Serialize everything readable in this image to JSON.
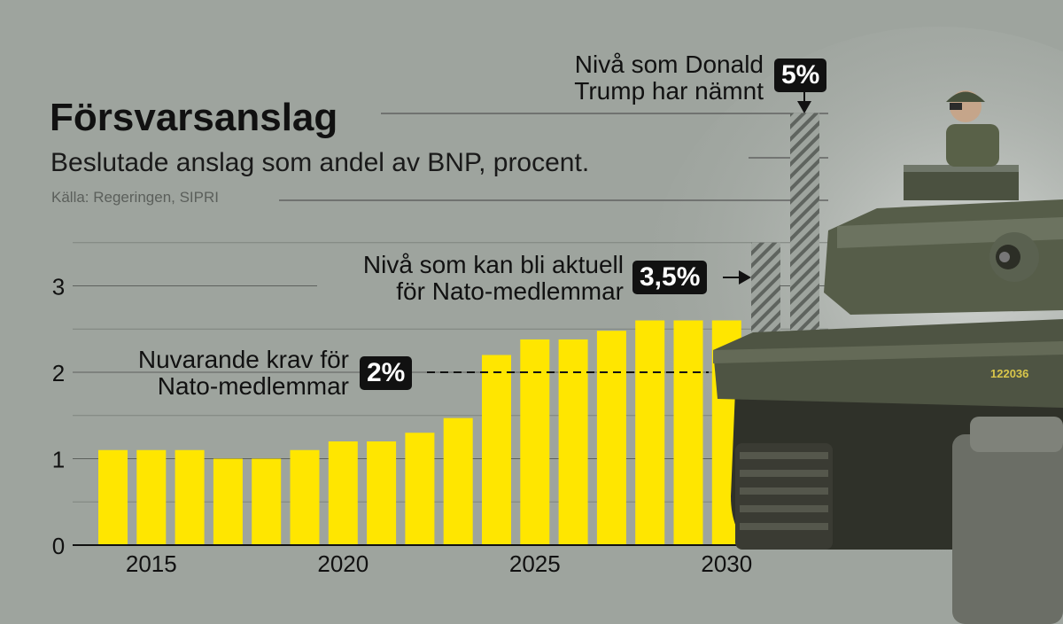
{
  "header": {
    "title": "Försvarsanslag",
    "subtitle": "Beslutade anslag som andel av BNP, procent.",
    "source": "Källa: Regeringen, SIPRI"
  },
  "annotations": {
    "trump": {
      "text_line1": "Nivå som Donald",
      "text_line2": "Trump har nämnt",
      "badge": "5%"
    },
    "nato_future": {
      "text_line1": "Nivå som kan bli aktuell",
      "text_line2": "för Nato-medlemmar",
      "badge": "3,5%"
    },
    "nato_current": {
      "text_line1": "Nuvarande krav för",
      "text_line2": "Nato-medlemmar",
      "badge": "2%"
    }
  },
  "photo": {
    "label": "Tank with soldier (photo)",
    "plate": "122036"
  },
  "colors": {
    "background": "#9ea49e",
    "bar": "#ffe600",
    "text": "#111111",
    "badge": "#111111",
    "hatch": "#5f645f"
  },
  "chart_data": {
    "type": "bar",
    "title": "Försvarsanslag",
    "subtitle": "Beslutade anslag som andel av BNP, procent.",
    "xlabel": "",
    "ylabel": "",
    "categories": [
      "2014",
      "2015",
      "2016",
      "2017",
      "2018",
      "2019",
      "2020",
      "2021",
      "2022",
      "2023",
      "2024",
      "2025",
      "2026",
      "2027",
      "2028",
      "2029",
      "2030"
    ],
    "values": [
      1.1,
      1.1,
      1.1,
      1.0,
      1.0,
      1.1,
      1.2,
      1.2,
      1.3,
      1.47,
      2.2,
      2.38,
      2.38,
      2.48,
      2.6,
      2.6,
      2.6
    ],
    "ylim": [
      0,
      3.5
    ],
    "yticks": [
      0,
      1,
      2,
      3
    ],
    "xtick_labels": [
      "2015",
      "2020",
      "2025",
      "2030"
    ],
    "reference_levels": [
      {
        "value": 2,
        "label": "Nuvarande krav för Nato-medlemmar",
        "badge": "2%",
        "style": "dashed"
      },
      {
        "value": 3.5,
        "label": "Nivå som kan bli aktuell för Nato-medlemmar",
        "badge": "3,5%",
        "style": "hatched-bar"
      },
      {
        "value": 5,
        "label": "Nivå som Donald Trump har nämnt",
        "badge": "5%",
        "style": "hatched-bar"
      }
    ],
    "grid": true
  }
}
